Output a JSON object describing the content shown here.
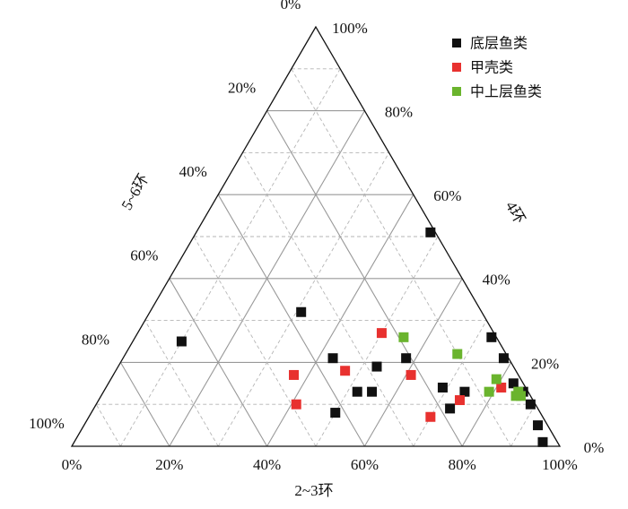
{
  "chart_data": {
    "type": "ternary",
    "xlabel": "2~3环",
    "ylabel": "4环",
    "zlabel": "5~6环",
    "xticks": [
      {
        "value": 0,
        "label": "0%"
      },
      {
        "value": 20,
        "label": "20%"
      },
      {
        "value": 40,
        "label": "40%"
      },
      {
        "value": 60,
        "label": "60%"
      },
      {
        "value": 80,
        "label": "80%"
      },
      {
        "value": 100,
        "label": "100%"
      }
    ],
    "yticks": [
      {
        "value": 0,
        "label": "0%"
      },
      {
        "value": 20,
        "label": "20%"
      },
      {
        "value": 40,
        "label": "40%"
      },
      {
        "value": 60,
        "label": "60%"
      },
      {
        "value": 80,
        "label": "80%"
      },
      {
        "value": 100,
        "label": "100%"
      }
    ],
    "zticks": [
      {
        "value": 0,
        "label": "0%"
      },
      {
        "value": 20,
        "label": "20%"
      },
      {
        "value": 40,
        "label": "40%"
      },
      {
        "value": 60,
        "label": "60%"
      },
      {
        "value": 80,
        "label": "80%"
      },
      {
        "value": 100,
        "label": "100%"
      }
    ],
    "minorticks": [
      10,
      30,
      50,
      70,
      90
    ],
    "grid": true,
    "legend": "upper right",
    "series": [
      {
        "name": "底层鱼类",
        "color": "#111111",
        "x": [
          48,
          31,
          10,
          43,
          73,
          58,
          78,
          53,
          52,
          55,
          69,
          74,
          83,
          73,
          50,
          86,
          89,
          93,
          96
        ],
        "values": [
          51,
          32,
          25,
          21,
          26,
          21,
          21,
          19,
          13,
          13,
          14,
          13,
          15,
          9,
          8,
          13,
          10,
          5,
          1
        ]
      },
      {
        "name": "甲壳类",
        "color": "#e8312f",
        "x": [
          50,
          47,
          37,
          61,
          74,
          81,
          41,
          70
        ],
        "values": [
          27,
          18,
          17,
          17,
          11,
          14,
          10,
          7
        ]
      },
      {
        "name": "中上层鱼类",
        "color": "#6ab42d",
        "x": [
          55,
          68,
          79,
          79,
          85,
          86,
          85
        ],
        "values": [
          26,
          22,
          16,
          13,
          13,
          12,
          12
        ]
      }
    ]
  }
}
